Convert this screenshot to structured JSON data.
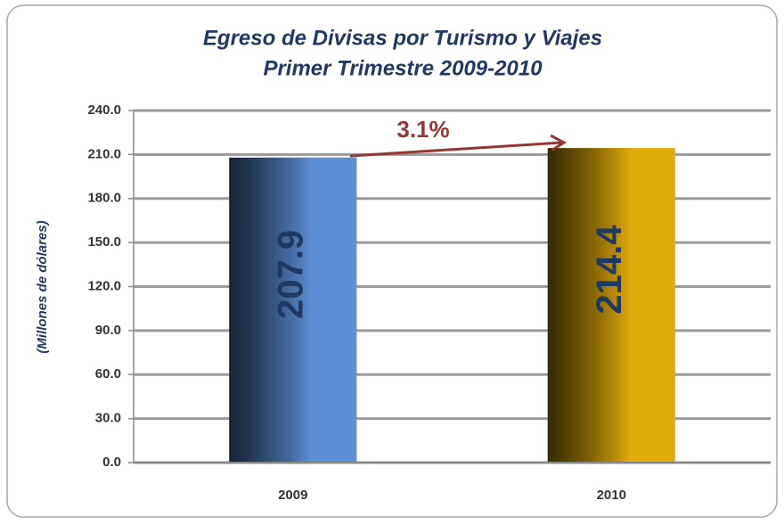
{
  "chart_data": {
    "type": "bar",
    "title": "Egreso de Divisas por Turismo y Viajes",
    "subtitle": "Primer Trimestre  2009-2010",
    "y_label": "(Millones de dólares)",
    "categories": [
      "2009",
      "2010"
    ],
    "values": [
      207.9,
      214.4
    ],
    "colors": [
      "#5b8fd6",
      "#e0aa0a"
    ],
    "label_color": "#1f3864",
    "annotation": "3.1%",
    "annotation_color": "#953735",
    "ylim": [
      0,
      240
    ],
    "yticks": [
      {
        "value": 0,
        "label": "0.0"
      },
      {
        "value": 30,
        "label": "30.0"
      },
      {
        "value": 60,
        "label": "60.0"
      },
      {
        "value": 90,
        "label": "90.0"
      },
      {
        "value": 120,
        "label": "120.0"
      },
      {
        "value": 150,
        "label": "150.0"
      },
      {
        "value": 180,
        "label": "180.0"
      },
      {
        "value": 210,
        "label": "210.0"
      },
      {
        "value": 240,
        "label": "240.0"
      }
    ],
    "grid": true
  }
}
